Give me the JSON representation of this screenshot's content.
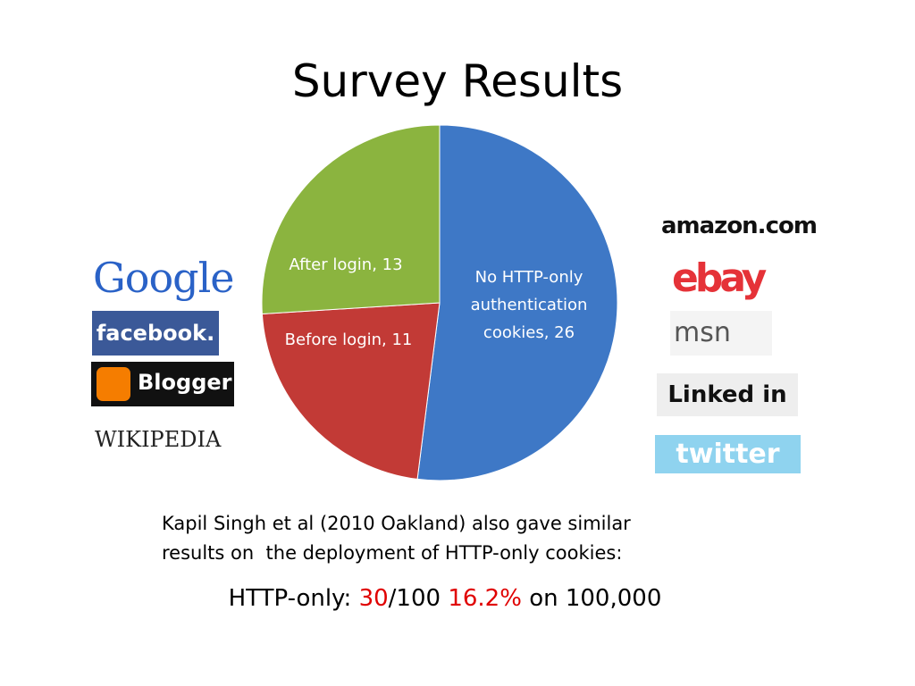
{
  "chart_data": {
    "type": "pie",
    "title": "Survey Results",
    "values": [
      26,
      11,
      13
    ],
    "value_labels": [
      "No HTTP-only authentication cookies, 26",
      "Before login, 11",
      "After login, 13"
    ],
    "colors": [
      "#3e78c6",
      "#c23a36",
      "#8bb43f"
    ]
  },
  "logos": {
    "left": [
      "Google",
      "facebook.",
      "Blogger",
      "WIKIPEDIA"
    ],
    "right": [
      "amazon.com",
      "ebay",
      "msn",
      "Linked in",
      "twitter"
    ]
  },
  "note": {
    "lines": [
      "Kapil Singh et al (2010 Oakland) also gave similar",
      "results on  the deployment of HTTP-only cookies:"
    ],
    "stat": {
      "prefix": "HTTP-only: ",
      "count": "30",
      "rest": "/100 ",
      "percent": "16.2%",
      "suffix": " on 100,000"
    }
  }
}
